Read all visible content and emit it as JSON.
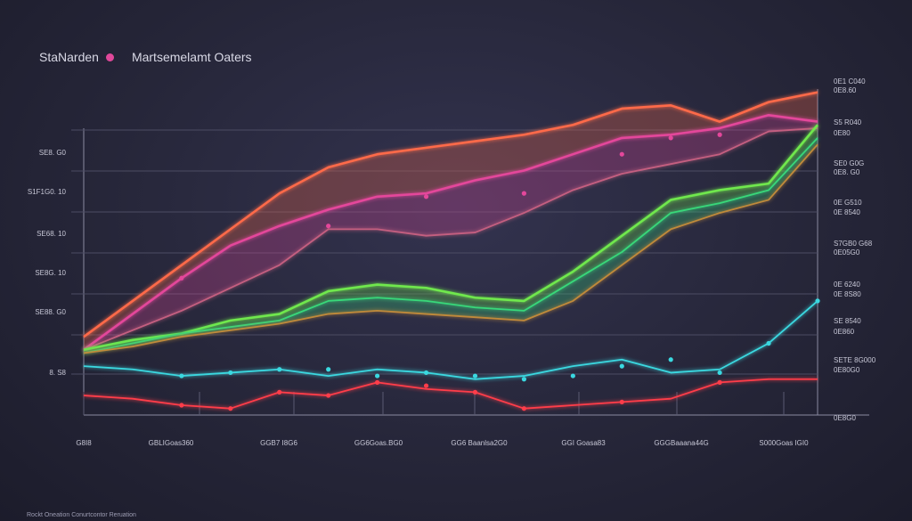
{
  "legend": {
    "series_a": "StaNarden",
    "series_b": "Martsemelamt Oaters",
    "dot_color": "#e0489a"
  },
  "footer": "Rockt Oneation Conurtcontor Reruation",
  "chart_data": {
    "type": "line",
    "x": [
      0,
      1,
      2,
      3,
      4,
      5,
      6,
      7,
      8,
      9,
      10,
      11,
      12,
      13,
      14,
      15
    ],
    "x_tick_labels": [
      "G8I8",
      "GBLIGoas360",
      "GGB7 I8G6",
      "GG6Goas.BG0",
      "GG6 Baanlsa2G0",
      "GGI Goasa83",
      "GGGBaaana44G",
      "S000Goas IGI0"
    ],
    "y_ticks_left": [
      "SE8. G0",
      "S1F1G0. 10",
      "SE68. 10",
      "SE8G. 10",
      "SE88. G0",
      "8. S8"
    ],
    "y_ticks_right": [
      [
        "0E1 C040",
        "0E8.60"
      ],
      [
        "S5 R040",
        "0E80"
      ],
      [
        "SE0 G0G",
        "0E8. G0"
      ],
      [
        "0E G510",
        "0E 8540"
      ],
      [
        "S7GB0 G68",
        "0E05G0"
      ],
      [
        "0E 6240",
        "0E 8S80"
      ],
      [
        "SE 8540",
        "0E860"
      ],
      [
        "SETE 8G000",
        "0E80G0"
      ],
      [
        "0E8G0"
      ]
    ],
    "ylim": [
      0,
      100
    ],
    "series": [
      {
        "color": "#ff6a4a",
        "values": [
          24,
          35,
          46,
          57,
          68,
          76,
          80,
          82,
          84,
          86,
          89,
          94,
          95,
          90,
          96,
          99
        ]
      },
      {
        "color": "#e4479b",
        "values": [
          20,
          31,
          42,
          52,
          58,
          63,
          67,
          68,
          72,
          75,
          80,
          85,
          86,
          88,
          92,
          90
        ]
      },
      {
        "color": "#c45f80",
        "values": [
          20,
          26,
          32,
          39,
          46,
          57,
          57,
          55,
          56,
          62,
          69,
          74,
          77,
          80,
          87,
          88
        ]
      },
      {
        "color": "#6fe84d",
        "values": [
          20,
          23,
          25,
          29,
          31,
          38,
          40,
          39,
          36,
          35,
          44,
          55,
          66,
          69,
          71,
          89
        ]
      },
      {
        "color": "#38d87a",
        "values": [
          19,
          22,
          25,
          27,
          29,
          35,
          36,
          35,
          33,
          32,
          41,
          50,
          62,
          65,
          69,
          85
        ]
      },
      {
        "color": "#c08a3a",
        "values": [
          19,
          21,
          24,
          26,
          28,
          31,
          32,
          31,
          30,
          29,
          35,
          46,
          57,
          62,
          66,
          83
        ]
      },
      {
        "color": "#3ad8e0",
        "values": [
          15,
          14,
          12,
          13,
          14,
          12,
          14,
          13,
          11,
          12,
          15,
          17,
          13,
          14,
          22,
          35
        ]
      },
      {
        "color": "#ff3d4a",
        "values": [
          6,
          5,
          3,
          2,
          7,
          6,
          10,
          8,
          7,
          2,
          3,
          4,
          5,
          10,
          11,
          11
        ]
      }
    ],
    "bands": [
      [
        0,
        1
      ],
      [
        1,
        2
      ],
      [
        3,
        4
      ],
      [
        4,
        5
      ]
    ],
    "markers": [
      {
        "series": 1,
        "points": [
          [
            2,
            42
          ],
          [
            5,
            58
          ],
          [
            7,
            67
          ],
          [
            9,
            68
          ],
          [
            11,
            80
          ],
          [
            12,
            85
          ],
          [
            13,
            86
          ]
        ]
      },
      {
        "series": 6,
        "points": [
          [
            2,
            12
          ],
          [
            3,
            13
          ],
          [
            4,
            14
          ],
          [
            5,
            14
          ],
          [
            6,
            12
          ],
          [
            7,
            13
          ],
          [
            8,
            12
          ],
          [
            9,
            11
          ],
          [
            10,
            12
          ],
          [
            11,
            15
          ],
          [
            12,
            17
          ],
          [
            13,
            13
          ],
          [
            14,
            22
          ],
          [
            15,
            35
          ]
        ]
      },
      {
        "series": 7,
        "points": [
          [
            2,
            3
          ],
          [
            3,
            2
          ],
          [
            4,
            7
          ],
          [
            5,
            6
          ],
          [
            6,
            10
          ],
          [
            7,
            9
          ],
          [
            8,
            7
          ],
          [
            9,
            2
          ],
          [
            11,
            4
          ],
          [
            13,
            10
          ]
        ]
      }
    ],
    "grid": true
  }
}
